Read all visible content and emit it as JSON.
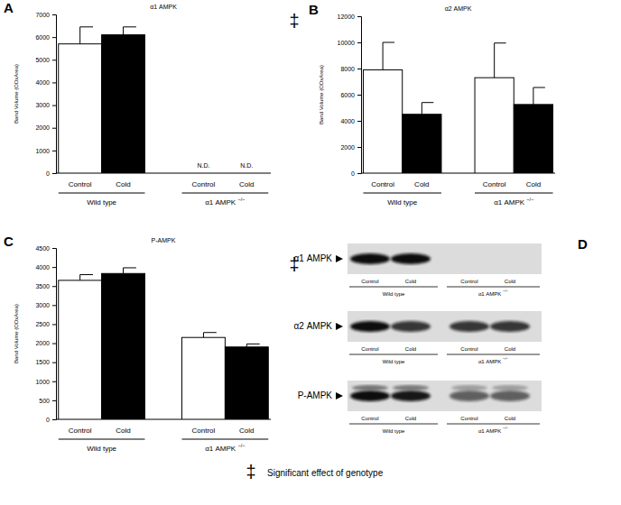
{
  "chart_data": [
    {
      "type": "bar",
      "panel_label": "A",
      "title": "α1 AMPK",
      "y_label": "Band Volume (ODxArea)",
      "categories": [
        "Wild type",
        "α1 AMPK −/−"
      ],
      "series": [
        {
          "name": "Control",
          "color": "#ffffff",
          "values": [
            5700,
            null
          ],
          "errors": [
            750,
            null
          ],
          "value_labels": [
            null,
            "N.D."
          ]
        },
        {
          "name": "Cold",
          "color": "#000000",
          "values": [
            6100,
            null
          ],
          "errors": [
            350,
            null
          ],
          "value_labels": [
            null,
            "N.D."
          ]
        }
      ],
      "ylim": [
        0,
        7000
      ],
      "yticks": [
        0,
        1000,
        2000,
        3000,
        4000,
        5000,
        6000,
        7000
      ],
      "annotation": "‡"
    },
    {
      "type": "bar",
      "panel_label": "B",
      "title": "α2 AMPK",
      "y_label": "Band Volume (ODxArea)",
      "categories": [
        "Wild type",
        "α1 AMPK −/−"
      ],
      "series": [
        {
          "name": "Control",
          "color": "#ffffff",
          "values": [
            7900,
            7300
          ],
          "errors": [
            2100,
            2650
          ]
        },
        {
          "name": "Cold",
          "color": "#000000",
          "values": [
            4500,
            5250
          ],
          "errors": [
            900,
            1300
          ]
        }
      ],
      "ylim": [
        0,
        12000
      ],
      "yticks": [
        0,
        2000,
        4000,
        6000,
        8000,
        10000,
        12000
      ]
    },
    {
      "type": "bar",
      "panel_label": "C",
      "title": "P-AMPK",
      "y_label": "Band Volume (ODxArea)",
      "categories": [
        "Wild type",
        "α1 AMPK −/−"
      ],
      "series": [
        {
          "name": "Control",
          "color": "#ffffff",
          "values": [
            3650,
            2150
          ],
          "errors": [
            150,
            130
          ]
        },
        {
          "name": "Cold",
          "color": "#000000",
          "values": [
            3830,
            1900
          ],
          "errors": [
            150,
            80
          ]
        }
      ],
      "ylim": [
        0,
        4500
      ],
      "yticks": [
        0,
        500,
        1000,
        1500,
        2000,
        2500,
        3000,
        3500,
        4000,
        4500
      ],
      "annotation": "‡"
    }
  ],
  "blot_panel": {
    "panel_label": "D",
    "rows": [
      "α1 AMPK",
      "α2 AMPK",
      "P-AMPK"
    ],
    "lanes": [
      "Control",
      "Cold",
      "Control",
      "Cold"
    ],
    "groups": [
      "Wild type",
      "α1 AMPK −/−"
    ]
  },
  "footnote": {
    "symbol": "‡",
    "text": "Significant effect of genotype"
  }
}
